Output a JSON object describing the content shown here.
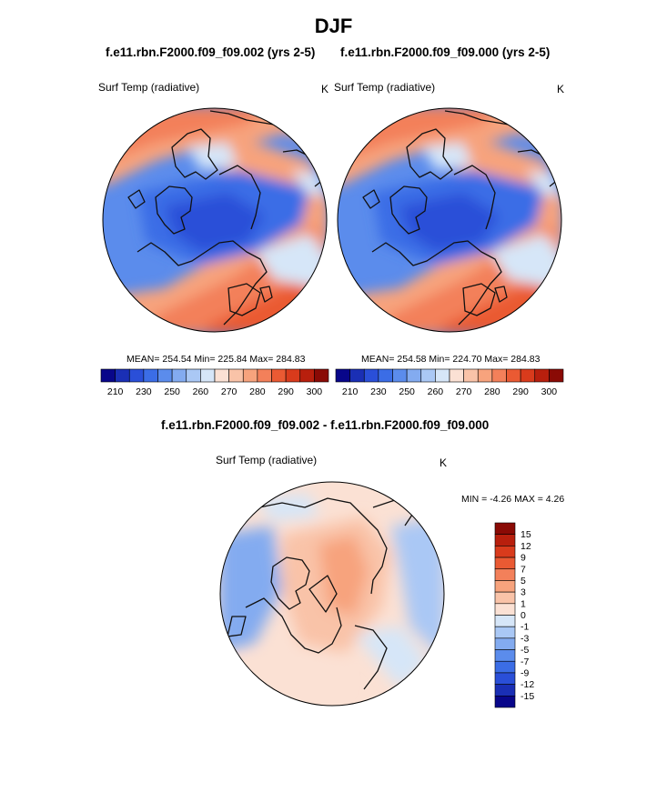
{
  "page": {
    "title": "DJF"
  },
  "panels": [
    {
      "case_title": "f.e11.rbn.F2000.f09_f09.002 (yrs 2-5)",
      "variable": "Surf Temp (radiative)",
      "units": "K",
      "stats": "MEAN= 254.54  Min= 225.84  Max= 284.83"
    },
    {
      "case_title": "f.e11.rbn.F2000.f09_f09.000 (yrs 2-5)",
      "variable": "Surf Temp (radiative)",
      "units": "K",
      "stats": "MEAN= 254.58  Min= 224.70  Max= 284.83"
    }
  ],
  "diff_panel": {
    "title": "f.e11.rbn.F2000.f09_f09.002 - f.e11.rbn.F2000.f09_f09.000",
    "variable": "Surf Temp (radiative)",
    "units": "K",
    "minmax": "MIN =  -4.26 MAX =   4.26"
  },
  "chart_data": [
    {
      "type": "heatmap",
      "projection": "north polar stereographic",
      "title": "f.e11.rbn.F2000.f09_f09.002 (yrs 2-5)",
      "variable": "Surf Temp (radiative)",
      "units": "K",
      "mean": 254.54,
      "min": 225.84,
      "max": 284.83,
      "colorbar": {
        "orientation": "horizontal",
        "tick_labels": [
          "210",
          "230",
          "250",
          "260",
          "270",
          "280",
          "290",
          "300"
        ],
        "colors": [
          "#08068a",
          "#1a2fb5",
          "#2a4fd8",
          "#3b6de6",
          "#5b8cec",
          "#83abf0",
          "#aac8f5",
          "#d6e6f8",
          "#fbe1d4",
          "#f9c3a8",
          "#f7a37d",
          "#f3805a",
          "#ea5a33",
          "#d93b1c",
          "#b81f0d",
          "#8a0a05"
        ]
      }
    },
    {
      "type": "heatmap",
      "projection": "north polar stereographic",
      "title": "f.e11.rbn.F2000.f09_f09.000 (yrs 2-5)",
      "variable": "Surf Temp (radiative)",
      "units": "K",
      "mean": 254.58,
      "min": 224.7,
      "max": 284.83,
      "colorbar": {
        "orientation": "horizontal",
        "tick_labels": [
          "210",
          "230",
          "250",
          "260",
          "270",
          "280",
          "290",
          "300"
        ],
        "colors": [
          "#08068a",
          "#1a2fb5",
          "#2a4fd8",
          "#3b6de6",
          "#5b8cec",
          "#83abf0",
          "#aac8f5",
          "#d6e6f8",
          "#fbe1d4",
          "#f9c3a8",
          "#f7a37d",
          "#f3805a",
          "#ea5a33",
          "#d93b1c",
          "#b81f0d",
          "#8a0a05"
        ]
      }
    },
    {
      "type": "heatmap",
      "projection": "north polar stereographic",
      "title": "f.e11.rbn.F2000.f09_f09.002 - f.e11.rbn.F2000.f09_f09.000",
      "variable": "Surf Temp (radiative)",
      "units": "K",
      "min": -4.26,
      "max": 4.26,
      "colorbar": {
        "orientation": "vertical",
        "tick_labels": [
          "15",
          "12",
          "9",
          "7",
          "5",
          "3",
          "1",
          "0",
          "-1",
          "-3",
          "-5",
          "-7",
          "-9",
          "-12",
          "-15"
        ],
        "colors": [
          "#8a0a05",
          "#b81f0d",
          "#d93b1c",
          "#ea5a33",
          "#f3805a",
          "#f7a37d",
          "#f9c3a8",
          "#fbe1d4",
          "#d6e6f8",
          "#aac8f5",
          "#83abf0",
          "#5b8cec",
          "#3b6de6",
          "#2a4fd8",
          "#1a2fb5",
          "#08068a"
        ]
      }
    }
  ]
}
